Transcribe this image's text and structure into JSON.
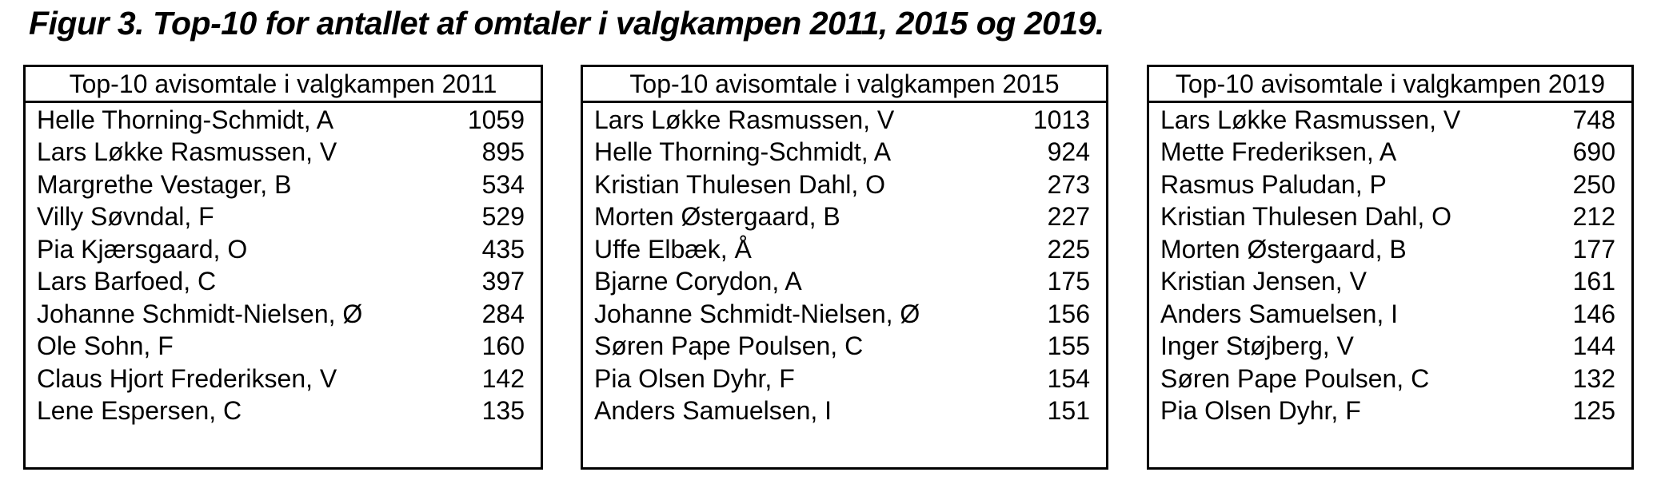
{
  "figure_title": "Figur 3. Top-10 for antallet af omtaler i valgkampen 2011, 2015 og 2019.",
  "tables": [
    {
      "header": "Top-10 avisomtale i valgkampen 2011",
      "rows": [
        {
          "name": "Helle Thorning-Schmidt, A",
          "value": 1059
        },
        {
          "name": "Lars Løkke Rasmussen, V",
          "value": 895
        },
        {
          "name": "Margrethe Vestager, B",
          "value": 534
        },
        {
          "name": "Villy Søvndal, F",
          "value": 529
        },
        {
          "name": "Pia Kjærsgaard, O",
          "value": 435
        },
        {
          "name": "Lars Barfoed, C",
          "value": 397
        },
        {
          "name": "Johanne Schmidt-Nielsen, Ø",
          "value": 284
        },
        {
          "name": "Ole Sohn, F",
          "value": 160
        },
        {
          "name": "Claus Hjort Frederiksen, V",
          "value": 142
        },
        {
          "name": "Lene Espersen, C",
          "value": 135
        }
      ]
    },
    {
      "header": "Top-10 avisomtale i valgkampen 2015",
      "rows": [
        {
          "name": "Lars Løkke Rasmussen, V",
          "value": 1013
        },
        {
          "name": "Helle Thorning-Schmidt, A",
          "value": 924
        },
        {
          "name": "Kristian Thulesen Dahl, O",
          "value": 273
        },
        {
          "name": "Morten Østergaard, B",
          "value": 227
        },
        {
          "name": "Uffe Elbæk, Å",
          "value": 225
        },
        {
          "name": "Bjarne Corydon, A",
          "value": 175
        },
        {
          "name": "Johanne Schmidt-Nielsen, Ø",
          "value": 156
        },
        {
          "name": "Søren Pape Poulsen, C",
          "value": 155
        },
        {
          "name": "Pia Olsen Dyhr, F",
          "value": 154
        },
        {
          "name": "Anders Samuelsen, I",
          "value": 151
        }
      ]
    },
    {
      "header": "Top-10 avisomtale i valgkampen 2019",
      "rows": [
        {
          "name": "Lars Løkke Rasmussen, V",
          "value": 748
        },
        {
          "name": "Mette Frederiksen, A",
          "value": 690
        },
        {
          "name": "Rasmus Paludan, P",
          "value": 250
        },
        {
          "name": "Kristian Thulesen Dahl, O",
          "value": 212
        },
        {
          "name": "Morten Østergaard, B",
          "value": 177
        },
        {
          "name": "Kristian Jensen, V",
          "value": 161
        },
        {
          "name": "Anders Samuelsen, I",
          "value": 146
        },
        {
          "name": "Inger Støjberg, V",
          "value": 144
        },
        {
          "name": "Søren Pape Poulsen, C",
          "value": 132
        },
        {
          "name": "Pia Olsen Dyhr, F",
          "value": 125
        }
      ]
    }
  ]
}
